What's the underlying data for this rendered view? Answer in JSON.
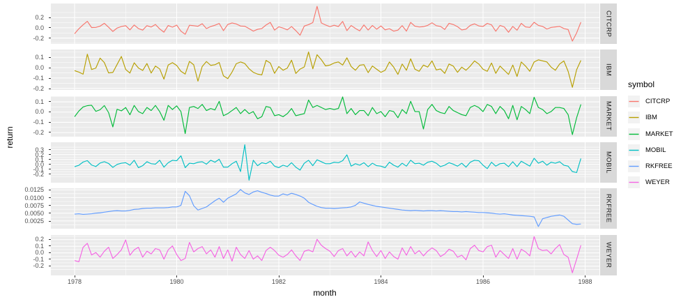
{
  "chart_data": {
    "type": "line",
    "title": "",
    "xlabel": "month",
    "ylabel": "return",
    "x_ticks": [
      1978,
      1980,
      1982,
      1984,
      1986,
      1988
    ],
    "x_tick_labels": [
      "1978",
      "1980",
      "1982",
      "1984",
      "1986",
      "1988"
    ],
    "x_minor_ticks": [
      1979,
      1981,
      1983,
      1985,
      1987
    ],
    "x_start_year": 1978,
    "x_months": 120,
    "grid": "on",
    "legend_position": "right",
    "legend": {
      "title": "symbol",
      "entries": [
        "CITCRP",
        "IBM",
        "MARKET",
        "MOBIL",
        "RKFREE",
        "WEYER"
      ]
    },
    "facets": [
      {
        "label": "CITCRP",
        "color": "#F8766D",
        "ylim": [
          -0.315,
          0.475
        ],
        "yticks": [
          0.2,
          0.0,
          -0.2
        ],
        "ytick_labels": [
          "0.2",
          "0.0",
          "-0.2"
        ],
        "values": [
          -0.115,
          -0.019,
          0.059,
          0.127,
          0.005,
          0.007,
          0.032,
          0.088,
          0.011,
          -0.071,
          -0.005,
          0.025,
          0.042,
          -0.04,
          0.055,
          -0.015,
          -0.045,
          0.042,
          0.015,
          0.065,
          -0.021,
          -0.085,
          0.045,
          0.012,
          0.053,
          -0.065,
          -0.127,
          0.05,
          0.042,
          0.03,
          0.08,
          -0.015,
          0.025,
          0.05,
          0.085,
          -0.055,
          0.065,
          0.095,
          0.075,
          0.035,
          0.03,
          -0.015,
          -0.065,
          -0.03,
          -0.015,
          0.055,
          0.105,
          -0.045,
          0.02,
          -0.005,
          -0.04,
          0.025,
          -0.055,
          -0.145,
          0.035,
          0.062,
          0.102,
          0.42,
          0.095,
          0.055,
          0.022,
          0.05,
          0.025,
          0.125,
          -0.055,
          0.045,
          -0.012,
          -0.06,
          0.056,
          -0.044,
          0.045,
          -0.027,
          0.036,
          -0.04,
          -0.017,
          -0.065,
          -0.045,
          0.042,
          -0.065,
          0.105,
          0.032,
          0.016,
          0.022,
          0.047,
          0.098,
          0.042,
          0.027,
          -0.032,
          0.087,
          0.064,
          0.022,
          -0.042,
          -0.027,
          0.047,
          0.077,
          0.037,
          0.027,
          0.087,
          0.057,
          -0.067,
          0.047,
          0.017,
          -0.087,
          0.027,
          -0.047,
          0.087,
          0.017,
          0.007,
          0.107,
          0.047,
          0.027,
          -0.024,
          0.007,
          0.017,
          0.027,
          -0.014,
          -0.034,
          -0.26,
          -0.1,
          0.11
        ]
      },
      {
        "label": "IBM",
        "color": "#B79F00",
        "ylim": [
          -0.215,
          0.175
        ],
        "yticks": [
          0.1,
          0.0,
          -0.1,
          -0.2
        ],
        "ytick_labels": [
          "0.1",
          "0.0",
          "-0.1",
          "-0.2"
        ],
        "values": [
          -0.029,
          -0.043,
          -0.063,
          0.13,
          -0.018,
          -0.004,
          0.092,
          0.049,
          -0.051,
          -0.046,
          0.031,
          0.108,
          -0.017,
          -0.052,
          0.047,
          -0.003,
          -0.027,
          0.04,
          -0.052,
          0.015,
          -0.012,
          -0.111,
          0.025,
          0.048,
          0.021,
          -0.035,
          -0.062,
          0.06,
          0.028,
          -0.13,
          0.011,
          0.059,
          0.022,
          0.028,
          0.05,
          -0.079,
          -0.106,
          -0.043,
          0.038,
          0.055,
          0.04,
          -0.01,
          -0.045,
          -0.062,
          -0.07,
          0.07,
          0.045,
          -0.055,
          0.011,
          -0.025,
          -0.004,
          0.072,
          -0.056,
          -0.014,
          0.007,
          0.151,
          -0.011,
          0.125,
          0.077,
          0.017,
          0.025,
          0.045,
          0.055,
          0.025,
          0.095,
          0.011,
          -0.025,
          0.023,
          0.029,
          -0.048,
          0.016,
          -0.015,
          -0.045,
          -0.025,
          0.055,
          0.005,
          -0.065,
          0.035,
          -0.025,
          0.085,
          -0.015,
          -0.035,
          0.025,
          0.005,
          0.065,
          -0.022,
          -0.013,
          -0.055,
          0.035,
          0.015,
          -0.045,
          0.005,
          -0.025,
          0.015,
          0.065,
          0.035,
          -0.015,
          -0.035,
          0.045,
          -0.055,
          0.015,
          -0.025,
          -0.065,
          0.025,
          -0.085,
          0.055,
          0.015,
          -0.035,
          0.055,
          0.075,
          0.065,
          0.055,
          0.005,
          -0.025,
          0.035,
          0.065,
          -0.035,
          -0.19,
          -0.02,
          0.07
        ]
      },
      {
        "label": "MARKET",
        "color": "#00BA38",
        "ylim": [
          -0.24,
          0.155
        ],
        "yticks": [
          0.1,
          0.0,
          -0.1,
          -0.2
        ],
        "ytick_labels": [
          "0.1",
          "0.0",
          "-0.1",
          "-0.2"
        ],
        "values": [
          -0.045,
          0.01,
          0.05,
          0.063,
          0.067,
          0.007,
          0.023,
          0.064,
          -0.005,
          -0.145,
          0.028,
          0.012,
          0.045,
          -0.026,
          0.065,
          0.005,
          -0.015,
          0.045,
          0.015,
          0.065,
          0.005,
          -0.08,
          0.065,
          0.025,
          0.061,
          0.005,
          -0.21,
          0.045,
          0.055,
          0.035,
          0.075,
          0.015,
          0.035,
          0.021,
          0.105,
          -0.035,
          -0.015,
          0.015,
          0.045,
          -0.015,
          0.025,
          -0.015,
          0.005,
          -0.065,
          -0.045,
          0.055,
          0.045,
          -0.035,
          -0.025,
          -0.045,
          -0.015,
          0.035,
          -0.035,
          -0.025,
          -0.015,
          0.118,
          0.045,
          0.065,
          0.045,
          0.025,
          0.035,
          0.025,
          0.035,
          0.148,
          -0.015,
          0.035,
          -0.025,
          0.015,
          0.015,
          -0.035,
          0.045,
          -0.015,
          0.005,
          -0.045,
          0.015,
          0.005,
          -0.055,
          0.025,
          -0.015,
          0.105,
          0.005,
          0.005,
          -0.165,
          0.025,
          0.075,
          0.015,
          -0.005,
          -0.015,
          0.055,
          0.015,
          -0.005,
          -0.025,
          -0.035,
          0.045,
          0.065,
          0.045,
          0.005,
          0.075,
          0.055,
          -0.015,
          0.055,
          0.015,
          -0.065,
          0.065,
          -0.075,
          0.055,
          0.025,
          -0.015,
          0.145,
          0.045,
          0.025,
          -0.015,
          0.005,
          0.045,
          0.045,
          0.035,
          -0.025,
          -0.22,
          -0.055,
          0.075
        ]
      },
      {
        "label": "MOBIL",
        "color": "#00BFC4",
        "ylim": [
          -0.37,
          0.45
        ],
        "yticks": [
          0.3,
          0.2,
          0.1,
          0.0,
          -0.1,
          -0.2
        ],
        "ytick_labels": [
          "0.3",
          "0.2",
          "0.1",
          "0.0",
          "-0.1",
          "-0.2"
        ],
        "values": [
          -0.046,
          -0.017,
          0.049,
          0.077,
          -0.011,
          -0.043,
          0.028,
          0.056,
          0.02,
          -0.06,
          0.0,
          0.025,
          0.035,
          -0.015,
          0.085,
          -0.065,
          -0.025,
          0.055,
          0.015,
          0.005,
          0.085,
          -0.055,
          0.035,
          0.085,
          0.075,
          0.175,
          -0.065,
          0.025,
          0.015,
          0.045,
          0.055,
          0.005,
          0.085,
          0.045,
          0.105,
          -0.055,
          -0.055,
          0.015,
          0.065,
          -0.145,
          0.4,
          -0.32,
          0.085,
          -0.025,
          0.035,
          0.015,
          0.065,
          -0.035,
          -0.065,
          -0.015,
          -0.045,
          0.035,
          -0.055,
          -0.115,
          0.025,
          0.085,
          -0.025,
          0.095,
          0.055,
          0.015,
          0.015,
          0.045,
          0.035,
          0.075,
          0.195,
          -0.035,
          0.015,
          -0.015,
          0.035,
          -0.045,
          0.025,
          -0.025,
          -0.035,
          -0.065,
          0.045,
          -0.015,
          -0.055,
          0.025,
          -0.035,
          0.085,
          0.015,
          0.025,
          -0.015,
          0.045,
          0.065,
          0.025,
          -0.045,
          -0.015,
          0.035,
          0.005,
          -0.035,
          0.025,
          -0.055,
          0.045,
          0.085,
          0.075,
          -0.015,
          -0.085,
          0.045,
          -0.035,
          0.015,
          0.025,
          -0.045,
          0.055,
          -0.045,
          0.065,
          0.015,
          -0.035,
          0.125,
          0.025,
          0.065,
          -0.015,
          0.045,
          0.025,
          0.055,
          -0.015,
          -0.035,
          -0.145,
          -0.165,
          0.12
        ]
      },
      {
        "label": "RKFREE",
        "color": "#619CFF",
        "ylim": [
          0.0,
          0.013
        ],
        "yticks": [
          0.0125,
          0.01,
          0.0075,
          0.005,
          0.0025
        ],
        "ytick_labels": [
          "0.0125",
          "0.0100",
          "0.0075",
          "0.0050",
          "0.0025"
        ],
        "values": [
          0.0047,
          0.0048,
          0.0046,
          0.0047,
          0.0048,
          0.005,
          0.0051,
          0.0053,
          0.0055,
          0.0057,
          0.0058,
          0.0057,
          0.0057,
          0.0059,
          0.0062,
          0.0063,
          0.0065,
          0.0066,
          0.0066,
          0.0067,
          0.0067,
          0.0067,
          0.0068,
          0.007,
          0.007,
          0.0075,
          0.012,
          0.0106,
          0.0074,
          0.006,
          0.0065,
          0.007,
          0.008,
          0.009,
          0.0098,
          0.0085,
          0.0098,
          0.0105,
          0.0112,
          0.0126,
          0.0115,
          0.011,
          0.0118,
          0.0122,
          0.0117,
          0.0113,
          0.0108,
          0.0105,
          0.0105,
          0.0112,
          0.0108,
          0.0114,
          0.011,
          0.0105,
          0.0098,
          0.0085,
          0.0078,
          0.0072,
          0.0068,
          0.0066,
          0.0066,
          0.0065,
          0.0066,
          0.0067,
          0.0068,
          0.007,
          0.0075,
          0.0086,
          0.0082,
          0.0078,
          0.0075,
          0.0072,
          0.007,
          0.0068,
          0.0066,
          0.0064,
          0.0062,
          0.006,
          0.0059,
          0.0058,
          0.0059,
          0.0058,
          0.0057,
          0.0058,
          0.0058,
          0.0057,
          0.0058,
          0.0057,
          0.0056,
          0.0055,
          0.0055,
          0.0054,
          0.0055,
          0.0054,
          0.0053,
          0.0052,
          0.0052,
          0.0051,
          0.005,
          0.0048,
          0.0047,
          0.0048,
          0.0046,
          0.0044,
          0.0043,
          0.0042,
          0.0041,
          0.004,
          0.0038,
          0.0007,
          0.0032,
          0.0036,
          0.004,
          0.0042,
          0.0044,
          0.004,
          0.0028,
          0.0016,
          0.0014,
          0.0015
        ]
      },
      {
        "label": "WEYER",
        "color": "#F564E3",
        "ylim": [
          -0.34,
          0.27
        ],
        "yticks": [
          0.2,
          0.1,
          0.0,
          -0.1,
          -0.2
        ],
        "ytick_labels": [
          "0.2",
          "0.1",
          "0.0",
          "-0.1",
          "-0.2"
        ],
        "values": [
          -0.116,
          -0.135,
          0.084,
          0.144,
          -0.031,
          0.005,
          -0.065,
          0.025,
          0.085,
          -0.085,
          -0.025,
          0.045,
          0.195,
          -0.035,
          0.045,
          0.085,
          -0.065,
          0.025,
          -0.015,
          0.065,
          0.045,
          -0.095,
          0.045,
          0.105,
          -0.025,
          -0.115,
          -0.085,
          0.158,
          0.015,
          0.065,
          0.095,
          -0.015,
          0.045,
          -0.065,
          0.095,
          -0.085,
          0.045,
          -0.125,
          0.085,
          -0.025,
          -0.085,
          0.035,
          -0.095,
          -0.045,
          -0.115,
          0.035,
          0.085,
          0.035,
          -0.035,
          -0.065,
          -0.025,
          0.045,
          -0.045,
          -0.115,
          0.025,
          0.045,
          0.015,
          0.205,
          0.115,
          0.065,
          0.025,
          -0.055,
          0.035,
          0.065,
          -0.045,
          0.025,
          -0.065,
          0.015,
          -0.045,
          0.165,
          0.035,
          -0.055,
          0.035,
          -0.085,
          0.015,
          -0.055,
          -0.095,
          0.075,
          -0.035,
          0.095,
          -0.015,
          0.035,
          -0.045,
          0.025,
          0.075,
          0.035,
          -0.055,
          -0.015,
          0.055,
          0.025,
          -0.065,
          -0.035,
          -0.105,
          0.065,
          0.115,
          0.035,
          0.015,
          0.095,
          0.115,
          -0.065,
          0.035,
          -0.025,
          -0.085,
          0.065,
          -0.095,
          0.055,
          0.015,
          -0.045,
          0.245,
          0.065,
          0.035,
          0.045,
          -0.015,
          0.065,
          0.125,
          -0.025,
          -0.065,
          -0.3,
          -0.095,
          0.115
        ]
      }
    ],
    "style": {
      "panel_bg": "#EBEBEB",
      "grid_color": "#FFFFFF",
      "strip_bg": "#D9D9D9",
      "strip_text": "#1A1A1A",
      "tick_text": "#4D4D4D",
      "legend_key_bg": "#F2F2F2"
    }
  }
}
